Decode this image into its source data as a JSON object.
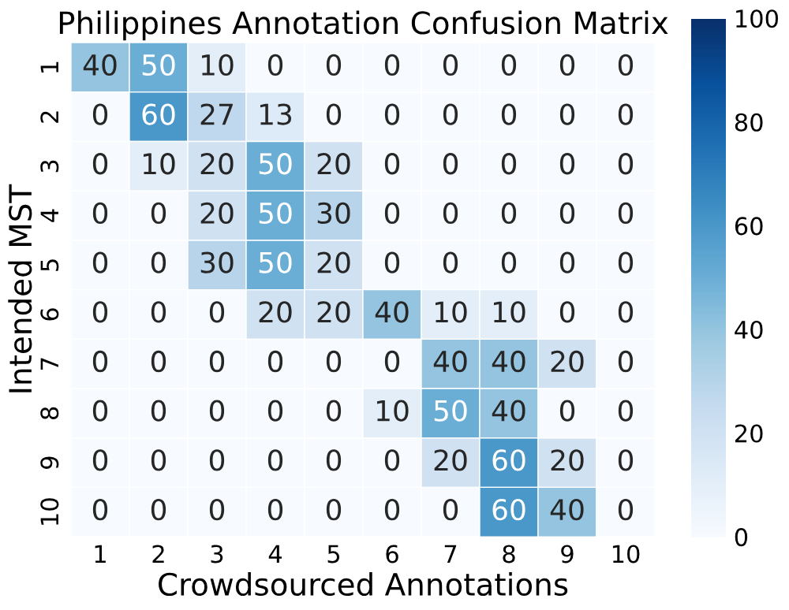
{
  "chart_data": {
    "type": "heatmap",
    "title": "Philippines Annotation Confusion Matrix",
    "xlabel": "Crowdsourced Annotations",
    "ylabel": "Intended MST",
    "categories": [
      "1",
      "2",
      "3",
      "4",
      "5",
      "6",
      "7",
      "8",
      "9",
      "10"
    ],
    "y_categories": [
      "1",
      "2",
      "3",
      "4",
      "5",
      "6",
      "7",
      "8",
      "9",
      "10"
    ],
    "cells": [
      [
        40,
        50,
        10,
        0,
        0,
        0,
        0,
        0,
        0,
        0
      ],
      [
        0,
        60,
        27,
        13,
        0,
        0,
        0,
        0,
        0,
        0
      ],
      [
        0,
        10,
        20,
        50,
        20,
        0,
        0,
        0,
        0,
        0
      ],
      [
        0,
        0,
        20,
        50,
        30,
        0,
        0,
        0,
        0,
        0
      ],
      [
        0,
        0,
        30,
        50,
        20,
        0,
        0,
        0,
        0,
        0
      ],
      [
        0,
        0,
        0,
        20,
        20,
        40,
        10,
        10,
        0,
        0
      ],
      [
        0,
        0,
        0,
        0,
        0,
        0,
        40,
        40,
        20,
        0
      ],
      [
        0,
        0,
        0,
        0,
        0,
        10,
        50,
        40,
        0,
        0
      ],
      [
        0,
        0,
        0,
        0,
        0,
        0,
        20,
        60,
        20,
        0
      ],
      [
        0,
        0,
        0,
        0,
        0,
        0,
        0,
        60,
        40,
        0
      ]
    ],
    "clim": [
      0,
      100
    ],
    "cticks": [
      0,
      20,
      40,
      60,
      80,
      100
    ],
    "data_labels": true
  }
}
